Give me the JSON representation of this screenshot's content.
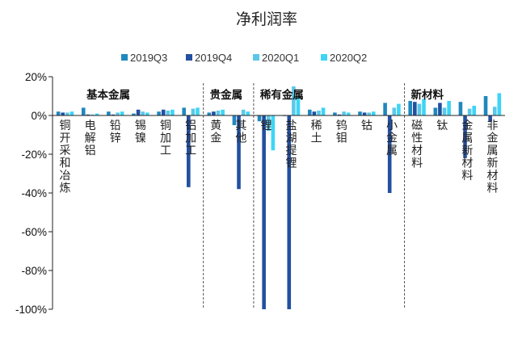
{
  "chart_data": {
    "type": "bar",
    "title": "净利润率",
    "ylim": [
      -100,
      20
    ],
    "yticks": [
      "20%",
      "0%",
      "-20%",
      "-40%",
      "-60%",
      "-80%",
      "-100%"
    ],
    "ytick_values": [
      20,
      0,
      -20,
      -40,
      -60,
      -80,
      -100
    ],
    "legend_position": "top",
    "grid": false,
    "categories": [
      "铜开采和冶炼",
      "电解铝",
      "铅锌",
      "锡镍",
      "铜加工",
      "铝加工",
      "黄金",
      "其他",
      "锂",
      "盐湖提锂",
      "稀土",
      "钨钼",
      "钴",
      "小金属",
      "磁性材料",
      "钛",
      "金属新材料",
      "非金属新材料"
    ],
    "groups": [
      {
        "label": "基本金属",
        "start": 0,
        "end": 5
      },
      {
        "label": "贵金属",
        "start": 6,
        "end": 7
      },
      {
        "label": "稀有金属",
        "start": 8,
        "end": 13
      },
      {
        "label": "新材料",
        "start": 14,
        "end": 17
      }
    ],
    "series": [
      {
        "name": "2019Q3",
        "color": "#1F88BD",
        "values": [
          2,
          4,
          2,
          1,
          2,
          4,
          1.5,
          -5,
          -3,
          0,
          3,
          1.5,
          2,
          6.5,
          7.5,
          4,
          7,
          10
        ]
      },
      {
        "name": "2019Q4",
        "color": "#2350A0",
        "values": [
          1.5,
          0.5,
          0.5,
          3,
          3,
          -37,
          2,
          -38,
          -100,
          -100,
          2,
          0.5,
          1.5,
          -40,
          7,
          6.5,
          -22,
          -3
        ]
      },
      {
        "name": "2020Q1",
        "color": "#5BC8E8",
        "values": [
          1.5,
          0.5,
          1.5,
          2,
          2.5,
          3.5,
          2.5,
          3,
          -8,
          15,
          2.5,
          2,
          1.5,
          4,
          6,
          4,
          3.5,
          4.5
        ]
      },
      {
        "name": "2020Q2",
        "color": "#3DD5F5",
        "values": [
          2,
          1,
          2,
          1.5,
          3,
          4,
          3,
          2,
          -18,
          10,
          4,
          1.5,
          2,
          6,
          8.5,
          7.5,
          5,
          11.5
        ]
      }
    ]
  }
}
